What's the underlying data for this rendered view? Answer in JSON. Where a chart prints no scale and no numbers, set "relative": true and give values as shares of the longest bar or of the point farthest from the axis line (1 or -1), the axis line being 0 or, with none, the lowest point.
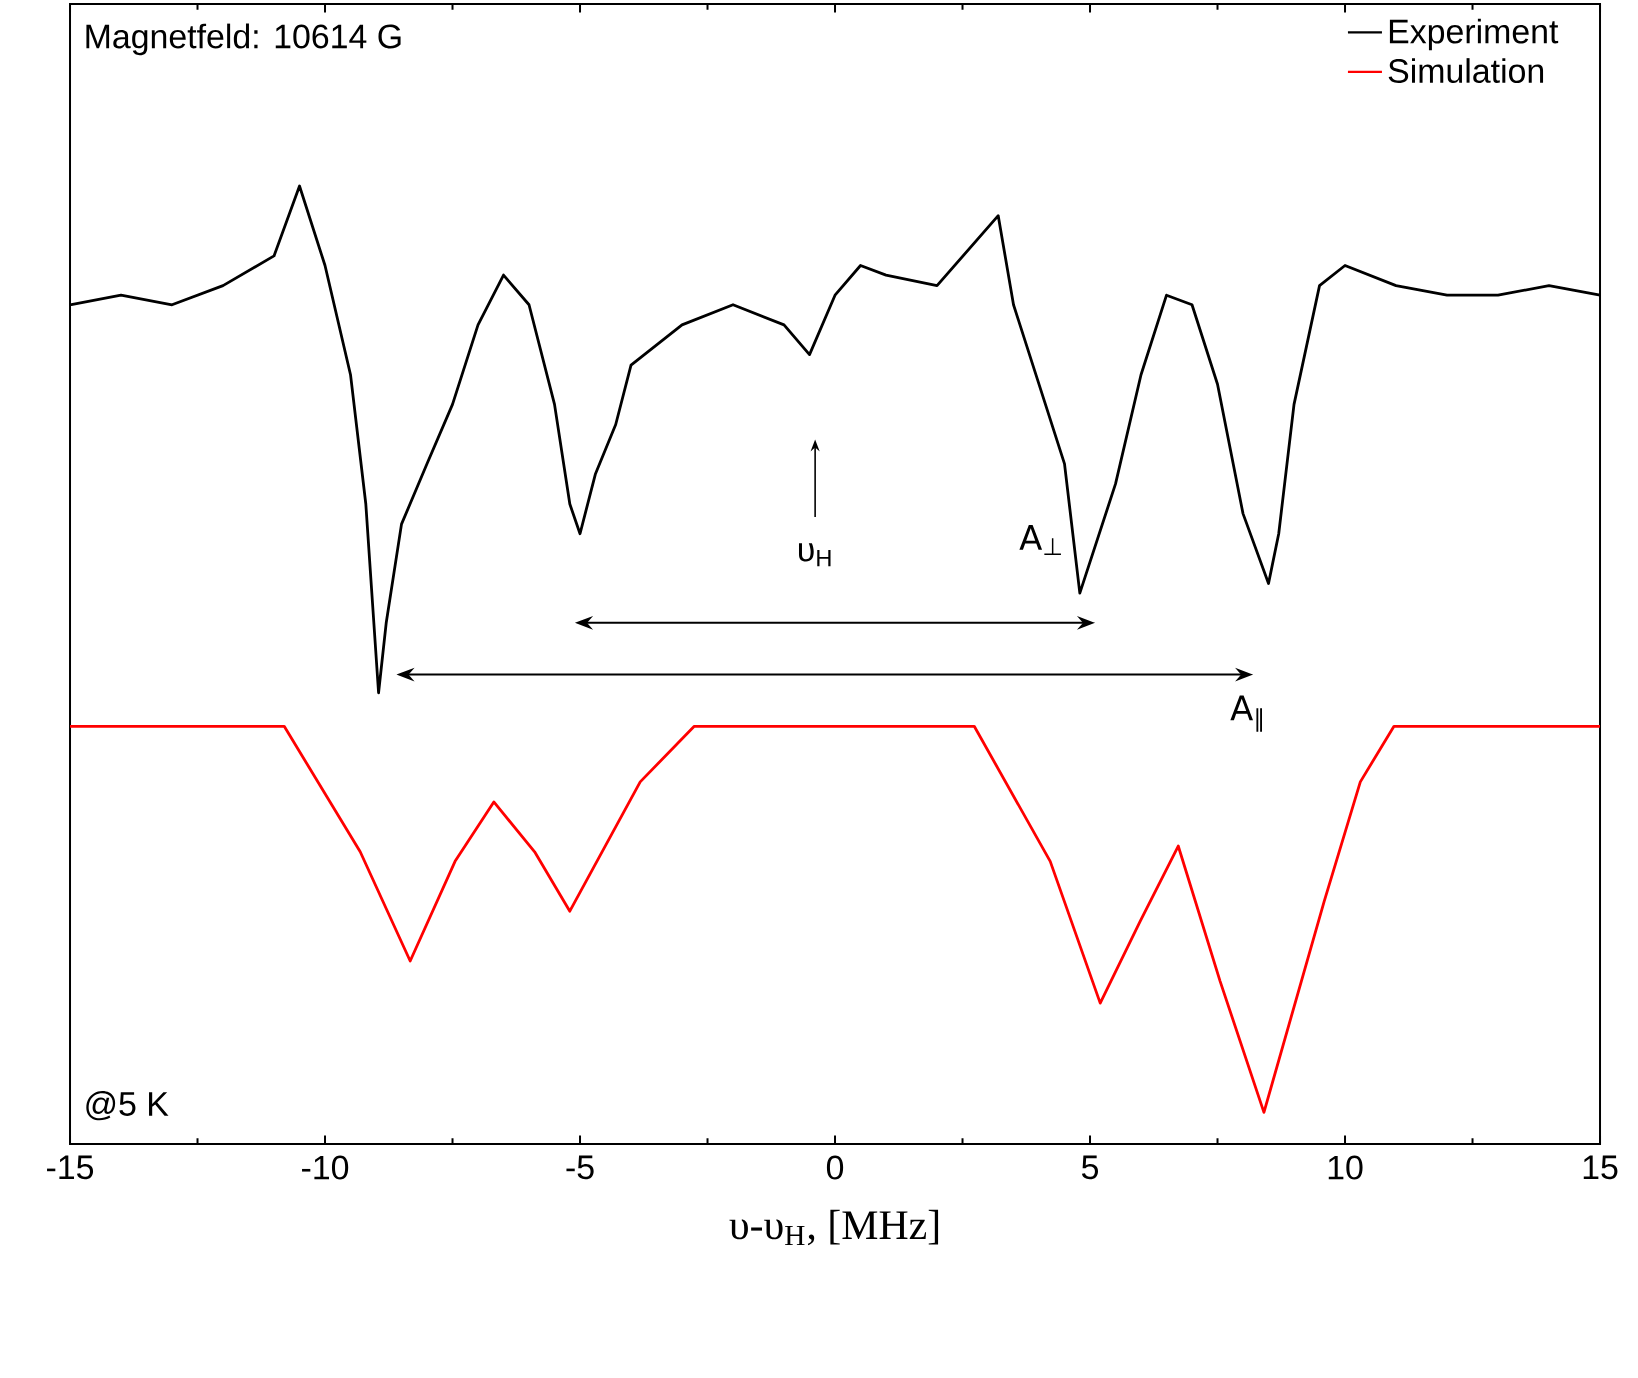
{
  "chart_data": {
    "type": "line",
    "relative": true,
    "xlabel": "υ-υ$_{H}$, [MHz]",
    "xlim": [
      -15,
      15
    ],
    "xticks": [
      -15,
      -10,
      -5,
      0,
      5,
      10,
      15
    ],
    "legend": "top right",
    "annotations": [
      "Magnetfeld: 10614 G",
      "@5 K",
      "υ$_{H}$",
      "A$_{⊥}$",
      "A$_{∥}$"
    ],
    "series": [
      {
        "name": "Experiment",
        "color": "#000000",
        "x": [
          -15,
          -14,
          -13,
          -12,
          -11,
          -10.5,
          -10,
          -9.5,
          -9.2,
          -8.95,
          -8.8,
          -8.5,
          -8,
          -7.5,
          -7,
          -6.5,
          -6,
          -5.5,
          -5.2,
          -5,
          -4.7,
          -4.3,
          -4,
          -3,
          -2,
          -1,
          -0.5,
          0,
          0.5,
          1,
          2,
          3.2,
          3.5,
          4,
          4.5,
          4.8,
          5.5,
          6,
          6.5,
          7,
          7.5,
          8,
          8.5,
          8.7,
          9,
          9.5,
          10,
          11,
          12,
          13,
          14,
          15
        ],
        "values": [
          0.876,
          0.886,
          0.876,
          0.896,
          0.927,
          1.0,
          0.917,
          0.803,
          0.668,
          0.471,
          0.544,
          0.647,
          0.71,
          0.772,
          0.855,
          0.907,
          0.876,
          0.772,
          0.668,
          0.637,
          0.699,
          0.751,
          0.813,
          0.855,
          0.876,
          0.855,
          0.824,
          0.886,
          0.917,
          0.907,
          0.896,
          0.969,
          0.876,
          0.793,
          0.71,
          0.575,
          0.689,
          0.803,
          0.886,
          0.876,
          0.793,
          0.658,
          0.585,
          0.637,
          0.772,
          0.896,
          0.917,
          0.896,
          0.886,
          0.886,
          0.896,
          0.886
        ]
      },
      {
        "name": "Simulation",
        "color": "#ff0000",
        "x": [
          -15,
          -10.8,
          -9.31,
          -8.33,
          -7.45,
          -6.69,
          -5.89,
          -5.2,
          -3.82,
          -2.76,
          2.73,
          4.22,
          5.2,
          5.98,
          6.73,
          7.55,
          8.41,
          9.59,
          10.3,
          10.96,
          15
        ],
        "values": [
          0.436,
          0.436,
          0.305,
          0.191,
          0.295,
          0.357,
          0.305,
          0.243,
          0.378,
          0.436,
          0.436,
          0.295,
          0.147,
          0.232,
          0.311,
          0.17,
          0.033,
          0.253,
          0.378,
          0.436,
          0.436
        ]
      }
    ]
  }
}
